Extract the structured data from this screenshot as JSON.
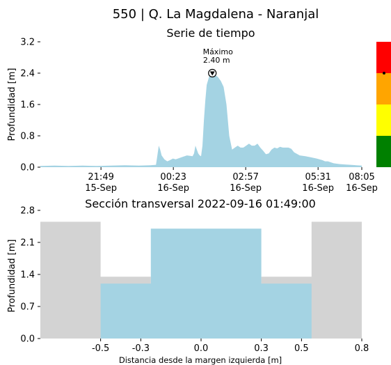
{
  "page_title": "550 | Q. La Magdalena - Naranjal",
  "colors": {
    "water": "#a4d3e3",
    "ground": "#d3d3d3",
    "alert_red": "#ff0000",
    "alert_orange": "#ffa500",
    "alert_yellow": "#ffff00",
    "alert_green": "#008000"
  },
  "chart_data": [
    {
      "type": "area",
      "title": "Serie de tiempo",
      "ylabel": "Profundidad [m]",
      "xlabel": "",
      "ylim": [
        0,
        3.2
      ],
      "xlim_hours": [
        0,
        11.4
      ],
      "yticks": [
        {
          "v": 0,
          "label": "0.0"
        },
        {
          "v": 0.8,
          "label": "0.8"
        },
        {
          "v": 1.6,
          "label": "1.6"
        },
        {
          "v": 2.4,
          "label": "2.4"
        },
        {
          "v": 3.2,
          "label": "3.2"
        }
      ],
      "xticks": [
        {
          "h": 2.15,
          "time": "21:49",
          "date": "15-Sep"
        },
        {
          "h": 4.717,
          "time": "00:23",
          "date": "16-Sep"
        },
        {
          "h": 7.283,
          "time": "02:57",
          "date": "16-Sep"
        },
        {
          "h": 9.85,
          "time": "05:31",
          "date": "16-Sep"
        },
        {
          "h": 12.417,
          "time": "08:05",
          "date": "16-Sep"
        }
      ],
      "series": [
        {
          "hours": [
            0.0,
            0.5,
            1.0,
            1.5,
            2.0,
            2.5,
            3.0,
            3.5,
            3.9,
            4.1,
            4.15,
            4.2,
            4.25,
            4.3,
            4.4,
            4.5,
            4.6,
            4.7,
            4.8,
            5.0,
            5.2,
            5.4,
            5.45,
            5.5,
            5.55,
            5.6,
            5.65,
            5.7,
            5.75,
            5.8,
            5.85,
            5.9,
            6.0,
            6.1,
            6.2,
            6.3,
            6.4,
            6.5,
            6.6,
            6.7,
            6.8,
            6.9,
            7.0,
            7.1,
            7.2,
            7.3,
            7.4,
            7.5,
            7.6,
            7.7,
            7.8,
            7.9,
            8.0,
            8.1,
            8.2,
            8.3,
            8.4,
            8.5,
            8.6,
            8.7,
            8.8,
            8.9,
            9.0,
            9.2,
            9.4,
            9.6,
            9.8,
            9.9,
            10.0,
            10.1,
            10.2,
            10.4,
            10.6,
            10.8,
            11.0,
            11.2,
            11.4
          ],
          "depths": [
            0.03,
            0.04,
            0.03,
            0.04,
            0.03,
            0.04,
            0.05,
            0.04,
            0.05,
            0.06,
            0.3,
            0.55,
            0.45,
            0.3,
            0.2,
            0.15,
            0.18,
            0.22,
            0.2,
            0.25,
            0.3,
            0.28,
            0.35,
            0.55,
            0.45,
            0.35,
            0.3,
            0.28,
            0.55,
            1.2,
            1.7,
            2.1,
            2.35,
            2.4,
            2.35,
            2.3,
            2.2,
            2.05,
            1.6,
            0.8,
            0.45,
            0.5,
            0.55,
            0.5,
            0.5,
            0.55,
            0.6,
            0.55,
            0.55,
            0.6,
            0.5,
            0.42,
            0.33,
            0.35,
            0.45,
            0.5,
            0.48,
            0.52,
            0.5,
            0.5,
            0.5,
            0.47,
            0.38,
            0.3,
            0.28,
            0.25,
            0.22,
            0.2,
            0.18,
            0.15,
            0.15,
            0.1,
            0.08,
            0.07,
            0.06,
            0.05,
            0.04
          ]
        }
      ],
      "annotation": {
        "line1": "Máximo",
        "line2": "2.40 m",
        "h": 6.1,
        "v": 2.4
      },
      "alert_bar": [
        {
          "level": "green",
          "from": 0,
          "to": 0.8
        },
        {
          "level": "yellow",
          "from": 0.8,
          "to": 1.6
        },
        {
          "level": "orange",
          "from": 1.6,
          "to": 2.4
        },
        {
          "level": "red",
          "from": 2.4,
          "to": 3.2
        }
      ],
      "current_level": 2.4
    },
    {
      "type": "area",
      "title": "Sección transversal 2022-09-16 01:49:00",
      "xlabel": "Distancia desde la margen izquierda [m]",
      "ylabel": "Profundidad [m]",
      "xlim": [
        -0.8,
        0.8
      ],
      "ylim": [
        0,
        2.8
      ],
      "xticks": [
        {
          "v": -0.5,
          "label": "-0.5"
        },
        {
          "v": -0.3,
          "label": "-0.3"
        },
        {
          "v": 0.0,
          "label": "0.0"
        },
        {
          "v": 0.3,
          "label": "0.3"
        },
        {
          "v": 0.5,
          "label": "0.5"
        },
        {
          "v": 0.8,
          "label": "0.8"
        }
      ],
      "yticks": [
        {
          "v": 0.0,
          "label": "0.0"
        },
        {
          "v": 0.7,
          "label": "0.7"
        },
        {
          "v": 1.4,
          "label": "1.4"
        },
        {
          "v": 2.1,
          "label": "2.1"
        },
        {
          "v": 2.8,
          "label": "2.8"
        }
      ],
      "bank_height": 2.55,
      "section_profile": [
        [
          -0.5,
          1.2
        ],
        [
          -0.25,
          1.2
        ],
        [
          -0.25,
          2.4
        ],
        [
          0.3,
          2.4
        ],
        [
          0.3,
          1.2
        ],
        [
          0.55,
          1.2
        ]
      ],
      "water_level": 2.4
    }
  ]
}
